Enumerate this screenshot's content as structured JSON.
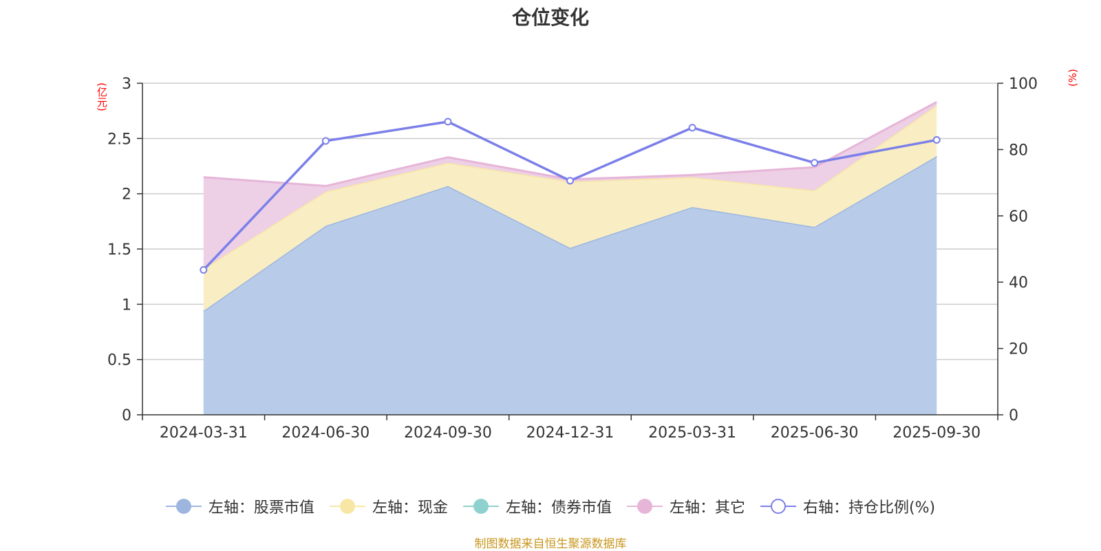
{
  "chart_data": {
    "type": "area",
    "title": "仓位变化",
    "left_axis_unit": "(亿元)",
    "right_axis_unit": "(%)",
    "categories": [
      "2024-03-31",
      "2024-06-30",
      "2024-09-30",
      "2024-12-31",
      "2025-03-31",
      "2025-06-30",
      "2025-09-30"
    ],
    "left_axis": {
      "min": 0,
      "max": 3,
      "ticks": [
        "0",
        "0.5",
        "1",
        "1.5",
        "2",
        "2.5",
        "3"
      ]
    },
    "right_axis": {
      "min": 0,
      "max": 100,
      "ticks": [
        "0",
        "20",
        "40",
        "60",
        "80",
        "100"
      ]
    },
    "series": [
      {
        "name": "左轴：股票市值",
        "axis": "left",
        "stacked": true,
        "color": "#9db5df",
        "fill": "#b8cce9",
        "values": [
          0.94,
          1.71,
          2.07,
          1.51,
          1.88,
          1.7,
          2.34
        ]
      },
      {
        "name": "左轴：现金",
        "axis": "left",
        "stacked": true,
        "color": "#f8e6a4",
        "fill": "#f9eec3",
        "values": [
          0.38,
          0.31,
          0.21,
          0.6,
          0.27,
          0.33,
          0.46
        ]
      },
      {
        "name": "左轴：债券市值",
        "axis": "left",
        "stacked": true,
        "color": "#8fd1cf",
        "fill": "#b5e0df",
        "values": [
          0,
          0,
          0,
          0,
          0,
          0,
          0
        ]
      },
      {
        "name": "左轴：其它",
        "axis": "left",
        "stacked": true,
        "color": "#e6b5d8",
        "fill": "#edd0e6",
        "values": [
          0.83,
          0.05,
          0.05,
          0.02,
          0.02,
          0.21,
          0.03
        ]
      },
      {
        "name": "右轴：持仓比例(%)",
        "axis": "right",
        "stacked": false,
        "color": "#7b7fe8",
        "values": [
          43.7,
          82.6,
          88.4,
          70.6,
          86.6,
          76.0,
          82.9
        ]
      }
    ]
  },
  "source": "制图数据来自恒生聚源数据库"
}
